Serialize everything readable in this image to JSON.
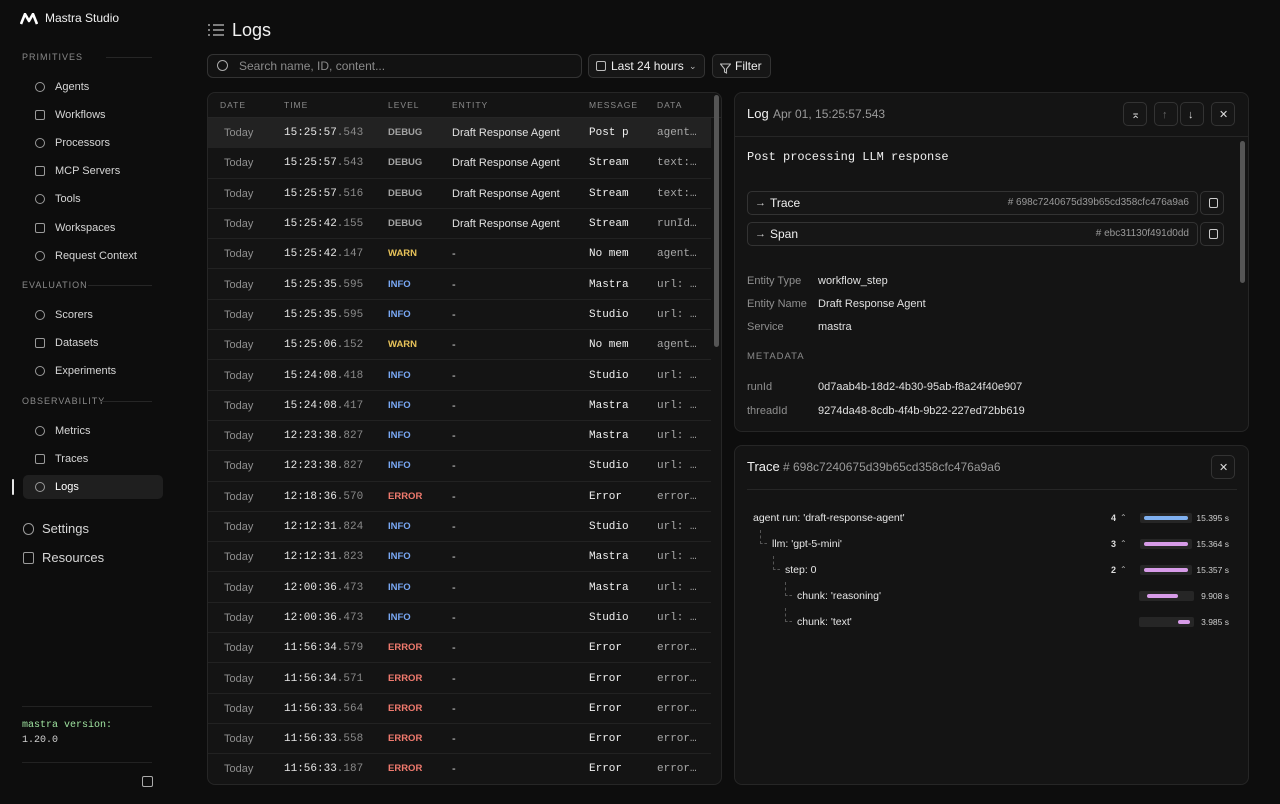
{
  "sidebar": {
    "brand": "Mastra Studio",
    "sections": [
      {
        "title": "PRIMITIVES",
        "items": [
          "Agents",
          "Workflows",
          "Processors",
          "MCP Servers",
          "Tools",
          "Workspaces",
          "Request Context"
        ]
      },
      {
        "title": "EVALUATION",
        "items": [
          "Scorers",
          "Datasets",
          "Experiments"
        ]
      },
      {
        "title": "OBSERVABILITY",
        "items": [
          "Metrics",
          "Traces",
          "Logs"
        ]
      }
    ],
    "links": [
      "Settings",
      "Resources"
    ],
    "version_label": "mastra version:",
    "version": "1.20.0"
  },
  "header": {
    "title": "Logs",
    "search_placeholder": "Search name, ID, content...",
    "range": "Last 24 hours",
    "filter": "Filter"
  },
  "table": {
    "columns": [
      "DATE",
      "TIME",
      "LEVEL",
      "ENTITY",
      "MESSAGE",
      "DATA"
    ],
    "level_colors": {
      "DEBUG": "#a3a3a3",
      "WARN": "#e8c35a",
      "INFO": "#79a8f5",
      "ERROR": "#f07a6e"
    },
    "rows": [
      {
        "date": "Today",
        "time": "15:25:57",
        "ms": ".543",
        "level": "DEBUG",
        "entity": "Draft Response Agent",
        "message": "Post p",
        "data": "agent…"
      },
      {
        "date": "Today",
        "time": "15:25:57",
        "ms": ".543",
        "level": "DEBUG",
        "entity": "Draft Response Agent",
        "message": "Stream",
        "data": "text:…"
      },
      {
        "date": "Today",
        "time": "15:25:57",
        "ms": ".516",
        "level": "DEBUG",
        "entity": "Draft Response Agent",
        "message": "Stream",
        "data": "text:…"
      },
      {
        "date": "Today",
        "time": "15:25:42",
        "ms": ".155",
        "level": "DEBUG",
        "entity": "Draft Response Agent",
        "message": "Stream",
        "data": "runId…"
      },
      {
        "date": "Today",
        "time": "15:25:42",
        "ms": ".147",
        "level": "WARN",
        "entity": "-",
        "message": "No mem",
        "data": "agent…"
      },
      {
        "date": "Today",
        "time": "15:25:35",
        "ms": ".595",
        "level": "INFO",
        "entity": "-",
        "message": "Mastra",
        "data": "url: …"
      },
      {
        "date": "Today",
        "time": "15:25:35",
        "ms": ".595",
        "level": "INFO",
        "entity": "-",
        "message": "Studio",
        "data": "url: …"
      },
      {
        "date": "Today",
        "time": "15:25:06",
        "ms": ".152",
        "level": "WARN",
        "entity": "-",
        "message": "No mem",
        "data": "agent…"
      },
      {
        "date": "Today",
        "time": "15:24:08",
        "ms": ".418",
        "level": "INFO",
        "entity": "-",
        "message": "Studio",
        "data": "url: …"
      },
      {
        "date": "Today",
        "time": "15:24:08",
        "ms": ".417",
        "level": "INFO",
        "entity": "-",
        "message": "Mastra",
        "data": "url: …"
      },
      {
        "date": "Today",
        "time": "12:23:38",
        "ms": ".827",
        "level": "INFO",
        "entity": "-",
        "message": "Mastra",
        "data": "url: …"
      },
      {
        "date": "Today",
        "time": "12:23:38",
        "ms": ".827",
        "level": "INFO",
        "entity": "-",
        "message": "Studio",
        "data": "url: …"
      },
      {
        "date": "Today",
        "time": "12:18:36",
        "ms": ".570",
        "level": "ERROR",
        "entity": "-",
        "message": "Error",
        "data": "error…"
      },
      {
        "date": "Today",
        "time": "12:12:31",
        "ms": ".824",
        "level": "INFO",
        "entity": "-",
        "message": "Studio",
        "data": "url: …"
      },
      {
        "date": "Today",
        "time": "12:12:31",
        "ms": ".823",
        "level": "INFO",
        "entity": "-",
        "message": "Mastra",
        "data": "url: …"
      },
      {
        "date": "Today",
        "time": "12:00:36",
        "ms": ".473",
        "level": "INFO",
        "entity": "-",
        "message": "Mastra",
        "data": "url: …"
      },
      {
        "date": "Today",
        "time": "12:00:36",
        "ms": ".473",
        "level": "INFO",
        "entity": "-",
        "message": "Studio",
        "data": "url: …"
      },
      {
        "date": "Today",
        "time": "11:56:34",
        "ms": ".579",
        "level": "ERROR",
        "entity": "-",
        "message": "Error",
        "data": "error…"
      },
      {
        "date": "Today",
        "time": "11:56:34",
        "ms": ".571",
        "level": "ERROR",
        "entity": "-",
        "message": "Error",
        "data": "error…"
      },
      {
        "date": "Today",
        "time": "11:56:33",
        "ms": ".564",
        "level": "ERROR",
        "entity": "-",
        "message": "Error",
        "data": "error…"
      },
      {
        "date": "Today",
        "time": "11:56:33",
        "ms": ".558",
        "level": "ERROR",
        "entity": "-",
        "message": "Error",
        "data": "error…"
      },
      {
        "date": "Today",
        "time": "11:56:33",
        "ms": ".187",
        "level": "ERROR",
        "entity": "-",
        "message": "Error",
        "data": "error…"
      }
    ]
  },
  "detail": {
    "title": "Log",
    "timestamp": "Apr 01, 15:25:57.543",
    "message": "Post processing LLM response",
    "links": [
      {
        "label": "Trace",
        "id": "# 698c7240675d39b65cd358cfc476a9a6"
      },
      {
        "label": "Span",
        "id": "# ebc31130f491d0dd"
      }
    ],
    "fields": [
      {
        "label": "Entity Type",
        "value": "workflow_step"
      },
      {
        "label": "Entity Name",
        "value": "Draft Response Agent"
      },
      {
        "label": "Service",
        "value": "mastra"
      }
    ],
    "metadata_title": "METADATA",
    "metadata": [
      {
        "label": "runId",
        "value": "0d7aab4b-18d2-4b30-95ab-f8a24f40e907"
      },
      {
        "label": "threadId",
        "value": "9274da48-8cdb-4f4b-9b22-227ed72bb619"
      }
    ]
  },
  "trace": {
    "title": "Trace",
    "id": "# 698c7240675d39b65cd358cfc476a9a6",
    "spans": [
      {
        "name": "agent run: 'draft-response-agent'",
        "count": "4",
        "duration": "15.395 s"
      },
      {
        "name": "llm: 'gpt-5-mini'",
        "count": "3",
        "duration": "15.364 s"
      },
      {
        "name": "step: 0",
        "count": "2",
        "duration": "15.357 s"
      },
      {
        "name": "chunk: 'reasoning'",
        "duration": "9.908 s"
      },
      {
        "name": "chunk: 'text'",
        "duration": "3.985 s"
      }
    ]
  }
}
